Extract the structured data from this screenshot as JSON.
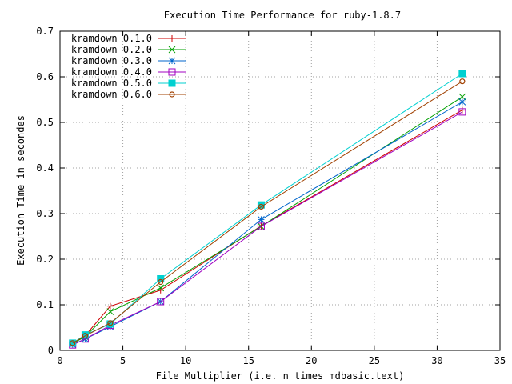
{
  "chart_data": {
    "type": "line",
    "title": "Execution Time Performance for ruby-1.8.7",
    "xlabel": "File Multiplier (i.e. n times mdbasic.text)",
    "ylabel": "Execution Time in secondes",
    "xlim": [
      0,
      35
    ],
    "ylim": [
      0,
      0.7
    ],
    "xticks": [
      0,
      5,
      10,
      15,
      20,
      25,
      30,
      35
    ],
    "yticks": [
      0,
      0.1,
      0.2,
      0.3,
      0.4,
      0.5,
      0.6,
      0.7
    ],
    "xtick_labels": [
      "0",
      "5",
      "10",
      "15",
      "20",
      "25",
      "30",
      "35"
    ],
    "ytick_labels": [
      "0",
      "0.1",
      "0.2",
      "0.3",
      "0.4",
      "0.5",
      "0.6",
      "0.7"
    ],
    "grid": true,
    "legend_position": "top-left",
    "x": [
      1,
      2,
      4,
      8,
      16,
      32
    ],
    "series": [
      {
        "name": "kramdown 0.1.0",
        "color": "#cc0000",
        "marker": "plus",
        "values": [
          0.015,
          0.032,
          0.097,
          0.132,
          0.273,
          0.527
        ]
      },
      {
        "name": "kramdown 0.2.0",
        "color": "#00a000",
        "marker": "cross",
        "values": [
          0.015,
          0.03,
          0.085,
          0.137,
          0.272,
          0.556
        ]
      },
      {
        "name": "kramdown 0.3.0",
        "color": "#0066cc",
        "marker": "star",
        "values": [
          0.013,
          0.025,
          0.052,
          0.107,
          0.287,
          0.545
        ]
      },
      {
        "name": "kramdown 0.4.0",
        "color": "#a000c0",
        "marker": "box",
        "values": [
          0.012,
          0.025,
          0.055,
          0.107,
          0.272,
          0.523
        ]
      },
      {
        "name": "kramdown 0.5.0",
        "color": "#00d0d0",
        "marker": "filled-box",
        "values": [
          0.016,
          0.034,
          0.058,
          0.157,
          0.319,
          0.607
        ]
      },
      {
        "name": "kramdown 0.6.0",
        "color": "#a04000",
        "marker": "circle",
        "values": [
          0.016,
          0.032,
          0.06,
          0.15,
          0.315,
          0.59
        ]
      }
    ]
  }
}
